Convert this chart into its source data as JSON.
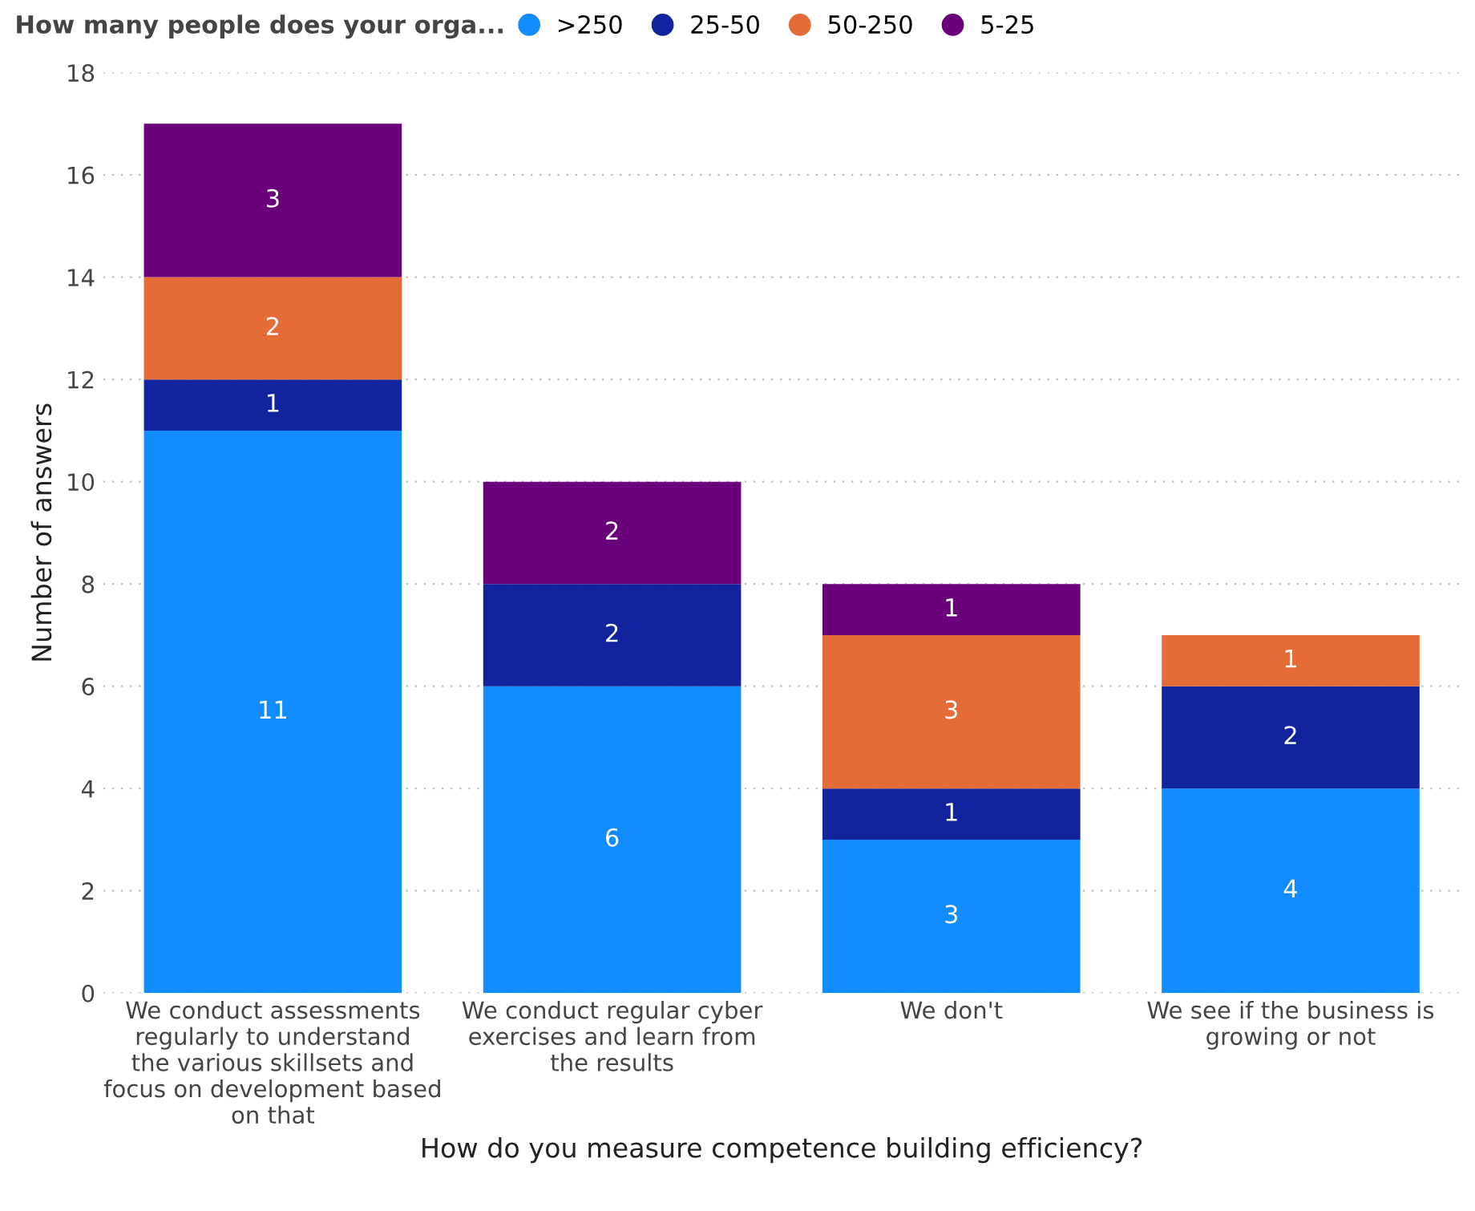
{
  "chart_data": {
    "type": "bar",
    "stacked": true,
    "legend_title": "How many people does your orga...",
    "xlabel": "How do you measure competence building efficiency?",
    "ylabel": "Number of answers",
    "categories": [
      "We conduct assessments regularly to understand the various skillsets and focus on development based on that",
      "We conduct regular cyber exercises and learn from the results",
      "We don't",
      "We see if the business is growing or not"
    ],
    "series": [
      {
        "name": ">250",
        "color": "#118dff",
        "values": [
          11,
          6,
          3,
          4
        ]
      },
      {
        "name": "25-50",
        "color": "#12239e",
        "values": [
          1,
          2,
          1,
          2
        ]
      },
      {
        "name": "50-250",
        "color": "#e66c37",
        "values": [
          2,
          null,
          3,
          1
        ]
      },
      {
        "name": "5-25",
        "color": "#6b007b",
        "values": [
          3,
          2,
          1,
          null
        ]
      }
    ],
    "ylim": [
      0,
      18
    ],
    "yticks": [
      0,
      2,
      4,
      6,
      8,
      10,
      12,
      14,
      16,
      18
    ],
    "grid": "y",
    "legend": "top left",
    "data_labels": true
  }
}
